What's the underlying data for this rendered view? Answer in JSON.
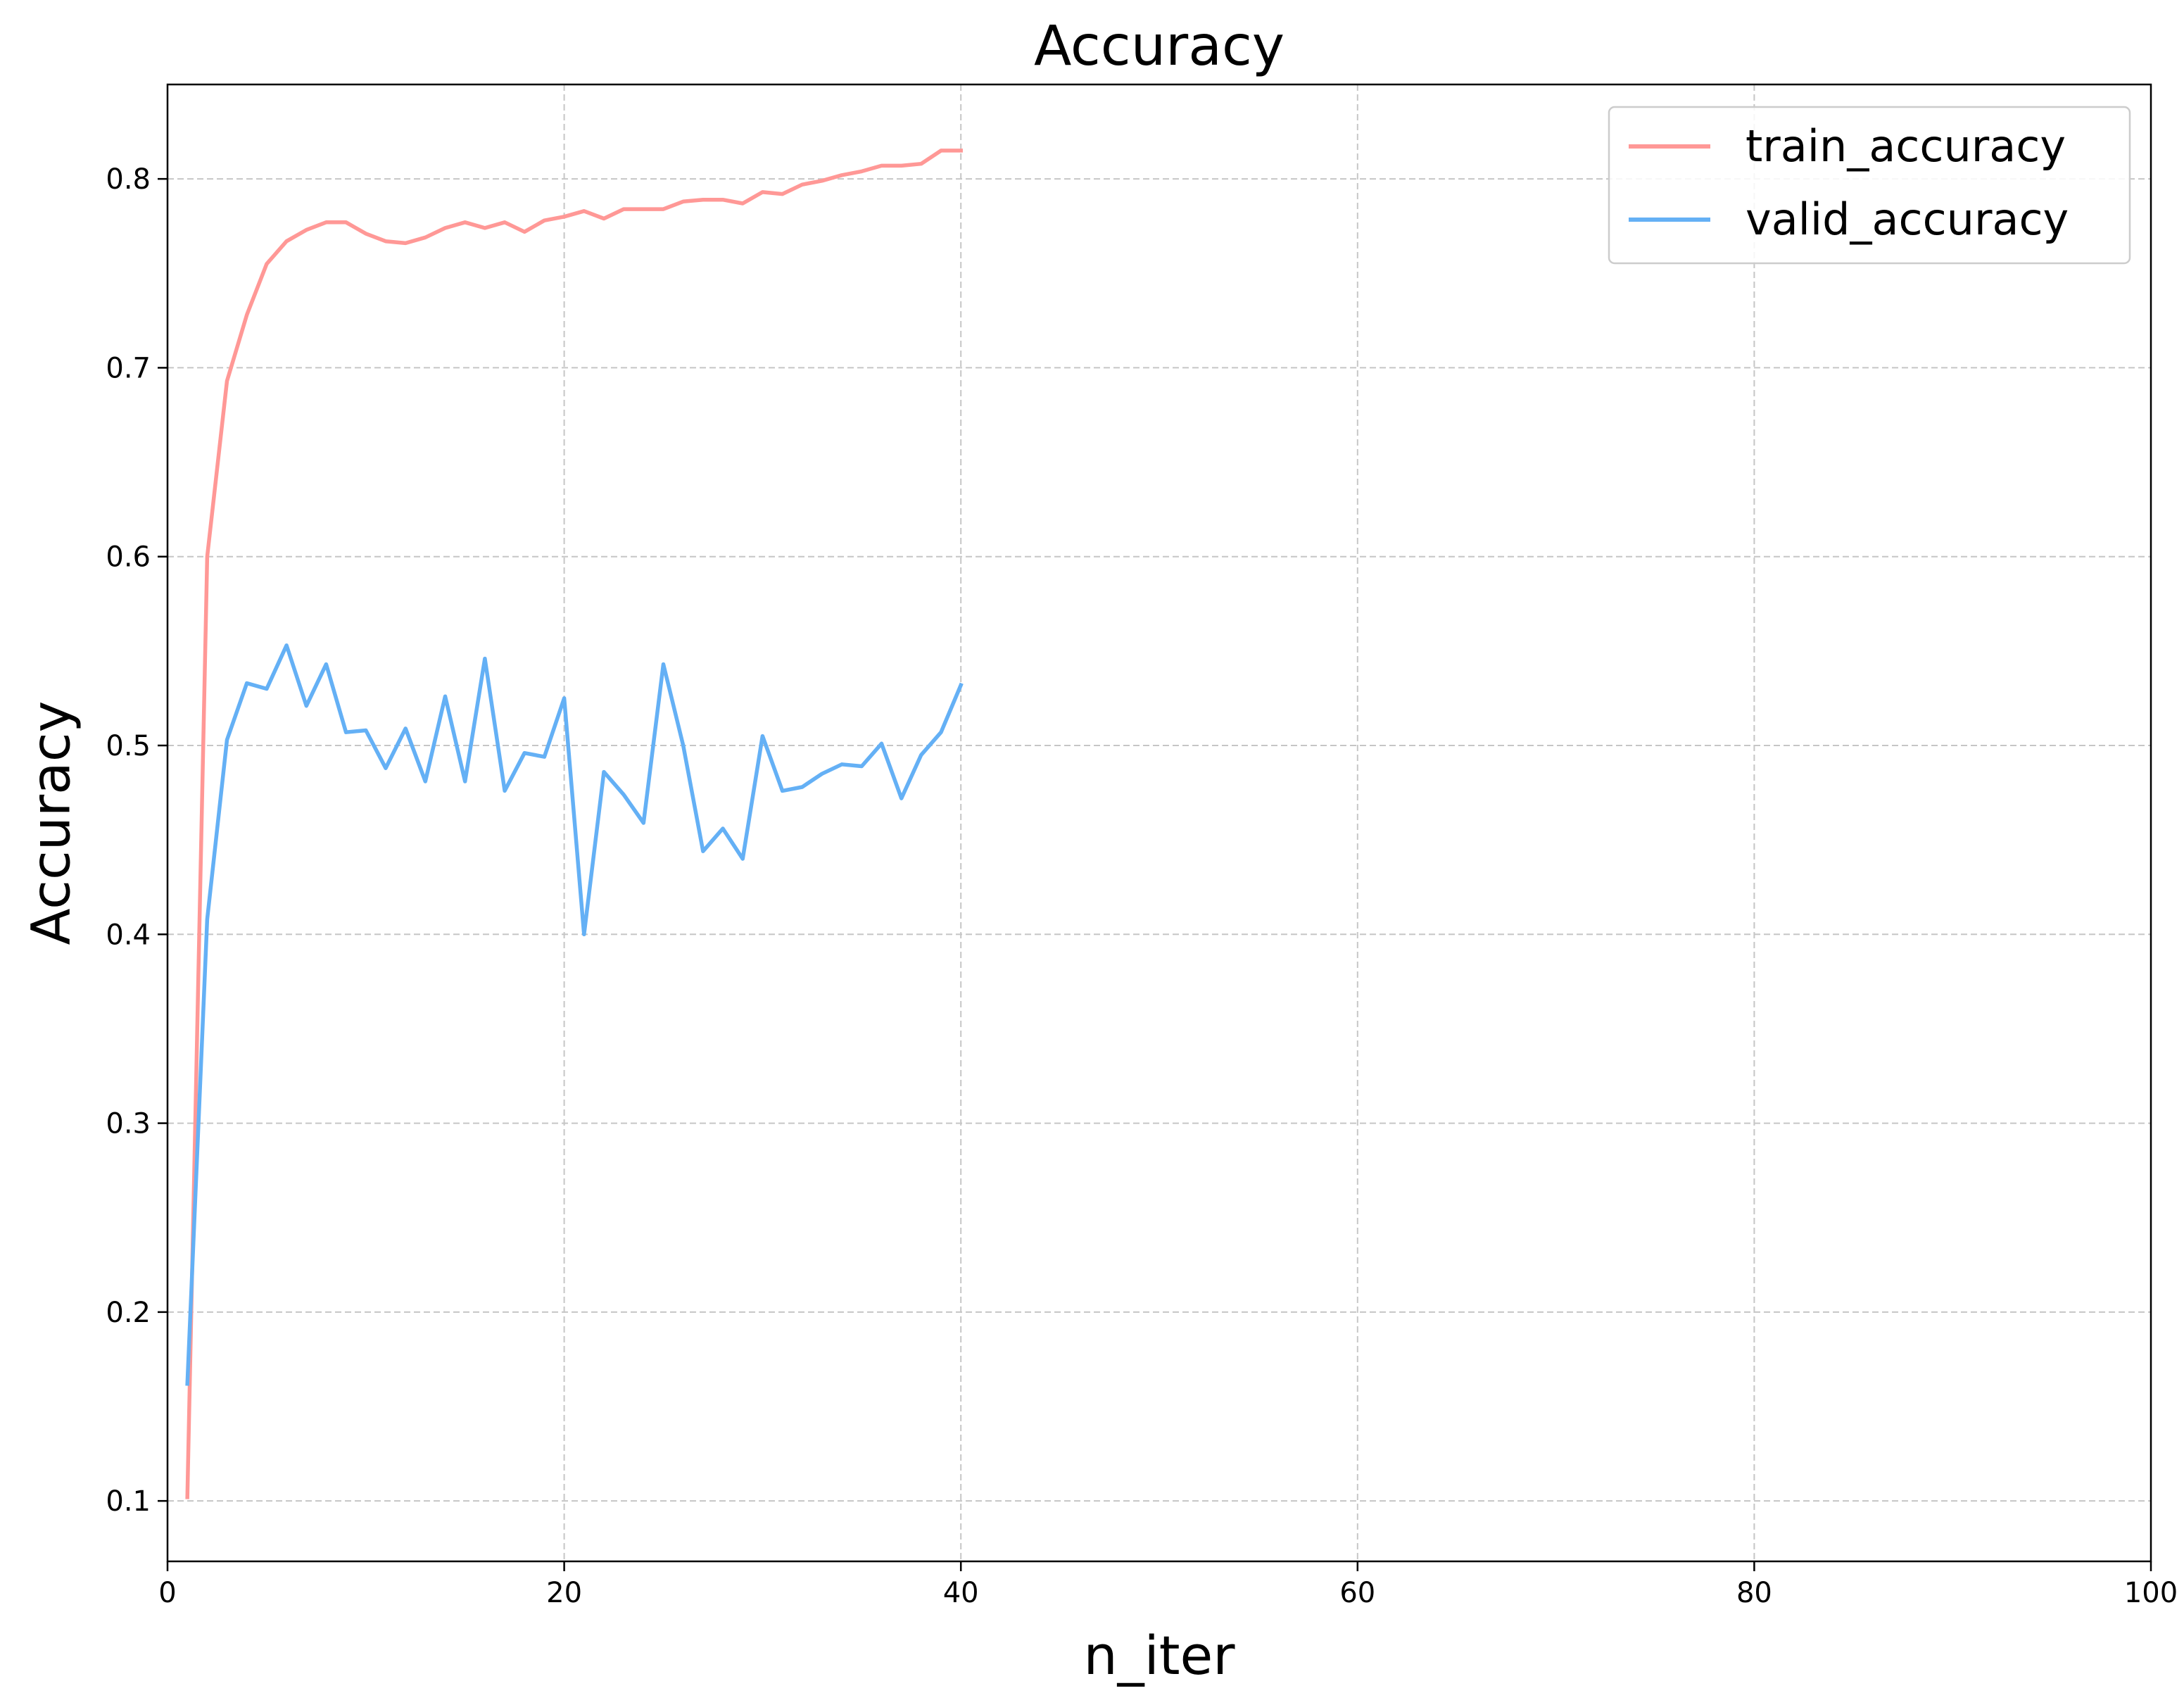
{
  "chart_data": {
    "type": "line",
    "title": "Accuracy",
    "xlabel": "n_iter",
    "ylabel": "Accuracy",
    "xlim": [
      0,
      100
    ],
    "ylim": [
      0.068,
      0.85
    ],
    "xticks": [
      0,
      20,
      40,
      60,
      80,
      100
    ],
    "yticks": [
      0.1,
      0.2,
      0.3,
      0.4,
      0.5,
      0.6,
      0.7,
      0.8
    ],
    "xtick_labels": [
      "0",
      "20",
      "40",
      "60",
      "80",
      "100"
    ],
    "ytick_labels": [
      "0.1",
      "0.2",
      "0.3",
      "0.4",
      "0.5",
      "0.6",
      "0.7",
      "0.8"
    ],
    "grid": true,
    "legend_position": "top-right",
    "x": [
      1,
      2,
      3,
      4,
      5,
      6,
      7,
      8,
      9,
      10,
      11,
      12,
      13,
      14,
      15,
      16,
      17,
      18,
      19,
      20,
      21,
      22,
      23,
      24,
      25,
      26,
      27,
      28,
      29,
      30,
      31,
      32,
      33,
      34,
      35,
      36,
      37,
      38,
      39,
      40
    ],
    "series": [
      {
        "name": "train_accuracy",
        "color": "#ff9896",
        "values": [
          0.102,
          0.6,
          0.693,
          0.728,
          0.755,
          0.767,
          0.773,
          0.777,
          0.777,
          0.771,
          0.767,
          0.766,
          0.769,
          0.774,
          0.777,
          0.774,
          0.777,
          0.772,
          0.778,
          0.78,
          0.783,
          0.779,
          0.784,
          0.784,
          0.784,
          0.788,
          0.789,
          0.789,
          0.787,
          0.793,
          0.792,
          0.797,
          0.799,
          0.802,
          0.804,
          0.807,
          0.807,
          0.808,
          0.815,
          0.815
        ]
      },
      {
        "name": "valid_accuracy",
        "color": "#64b0f5",
        "values": [
          0.162,
          0.408,
          0.503,
          0.533,
          0.53,
          0.553,
          0.521,
          0.543,
          0.507,
          0.508,
          0.488,
          0.509,
          0.481,
          0.526,
          0.481,
          0.546,
          0.476,
          0.496,
          0.494,
          0.525,
          0.4,
          0.486,
          0.474,
          0.459,
          0.543,
          0.5,
          0.444,
          0.456,
          0.44,
          0.505,
          0.476,
          0.478,
          0.485,
          0.49,
          0.489,
          0.501,
          0.472,
          0.495,
          0.507,
          0.532
        ]
      }
    ]
  }
}
